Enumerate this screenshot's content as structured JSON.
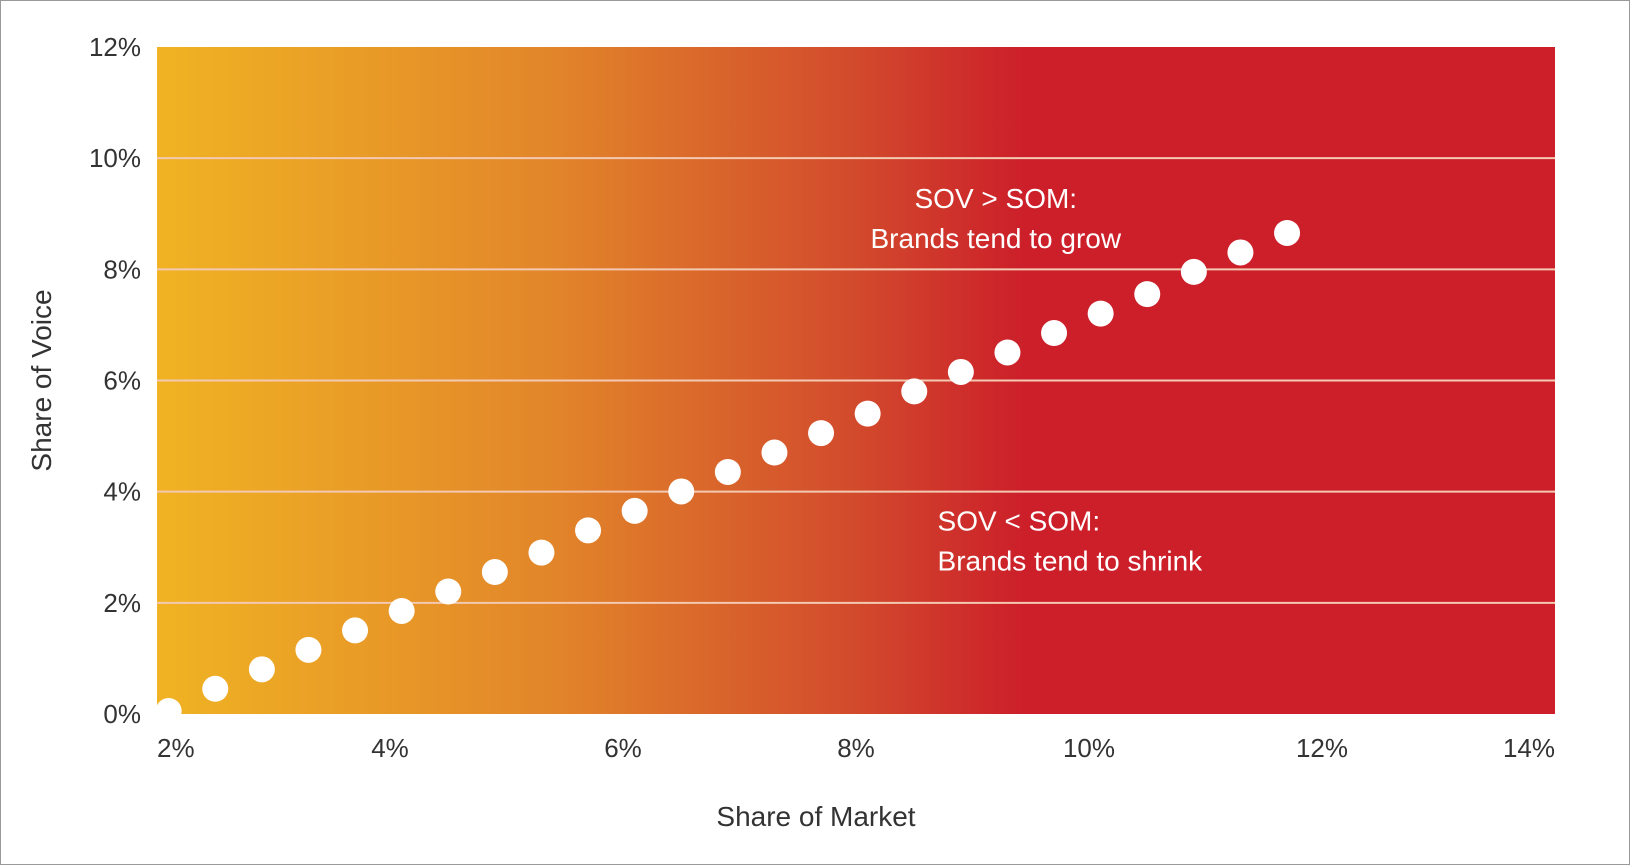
{
  "chart_data": {
    "type": "scatter",
    "xlabel": "Share of Market",
    "ylabel": "Share of Voice",
    "xlim": [
      2,
      14
    ],
    "ylim": [
      0,
      12
    ],
    "x_ticks": [
      "2%",
      "4%",
      "6%",
      "8%",
      "10%",
      "12%",
      "14%"
    ],
    "y_ticks": [
      "0%",
      "2%",
      "4%",
      "6%",
      "8%",
      "10%",
      "12%"
    ],
    "grid": true,
    "background_gradient": [
      "#f0b323",
      "#e2862a",
      "#d24a2c",
      "#cc1f2a",
      "#cc1f2a"
    ],
    "point_color": "#ffffff",
    "gridline_color": "#f3c9b2",
    "points": [
      {
        "x": 2.1,
        "y": 0.0
      },
      {
        "x": 2.5,
        "y": 0.4
      },
      {
        "x": 2.9,
        "y": 0.75
      },
      {
        "x": 3.3,
        "y": 1.1
      },
      {
        "x": 3.7,
        "y": 1.45
      },
      {
        "x": 4.1,
        "y": 1.8
      },
      {
        "x": 4.5,
        "y": 2.15
      },
      {
        "x": 4.9,
        "y": 2.5
      },
      {
        "x": 5.3,
        "y": 2.85
      },
      {
        "x": 5.7,
        "y": 3.25
      },
      {
        "x": 6.1,
        "y": 3.6
      },
      {
        "x": 6.5,
        "y": 3.95
      },
      {
        "x": 6.9,
        "y": 4.3
      },
      {
        "x": 7.3,
        "y": 4.65
      },
      {
        "x": 7.7,
        "y": 5.0
      },
      {
        "x": 8.1,
        "y": 5.35
      },
      {
        "x": 8.5,
        "y": 5.75
      },
      {
        "x": 8.9,
        "y": 6.1
      },
      {
        "x": 9.3,
        "y": 6.45
      },
      {
        "x": 9.7,
        "y": 6.8
      },
      {
        "x": 10.1,
        "y": 7.15
      },
      {
        "x": 10.5,
        "y": 7.5
      },
      {
        "x": 10.9,
        "y": 7.9
      },
      {
        "x": 11.3,
        "y": 8.25
      },
      {
        "x": 11.7,
        "y": 8.6
      }
    ],
    "annotations": [
      {
        "lines": [
          "SOV > SOM:",
          "Brands tend to grow"
        ],
        "x": 9.2,
        "y": 9.1,
        "align": "center"
      },
      {
        "lines": [
          "SOV < SOM:",
          "Brands tend to shrink"
        ],
        "x": 8.7,
        "y": 3.3,
        "align": "left"
      }
    ]
  }
}
